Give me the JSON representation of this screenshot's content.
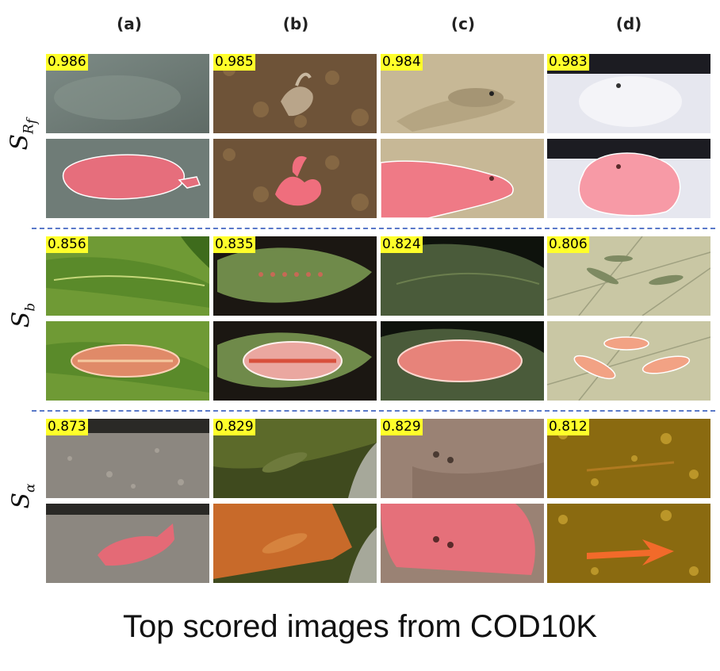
{
  "figure": {
    "columns": [
      "(a)",
      "(b)",
      "(c)",
      "(d)"
    ],
    "rows": [
      {
        "symbol": "S",
        "subscript": "R",
        "subsub": "f",
        "scores": [
          "0.986",
          "0.985",
          "0.984",
          "0.983"
        ]
      },
      {
        "symbol": "S",
        "subscript": "b",
        "subsub": "",
        "scores": [
          "0.856",
          "0.835",
          "0.824",
          "0.806"
        ]
      },
      {
        "symbol": "S",
        "subscript": "α",
        "subsub": "",
        "scores": [
          "0.873",
          "0.829",
          "0.829",
          "0.812"
        ]
      }
    ],
    "caption": "Top scored images from COD10K",
    "colors": {
      "score_bg": "#ffff2a",
      "separator": "#5a79c9",
      "mask": "#ff5a6e"
    }
  }
}
